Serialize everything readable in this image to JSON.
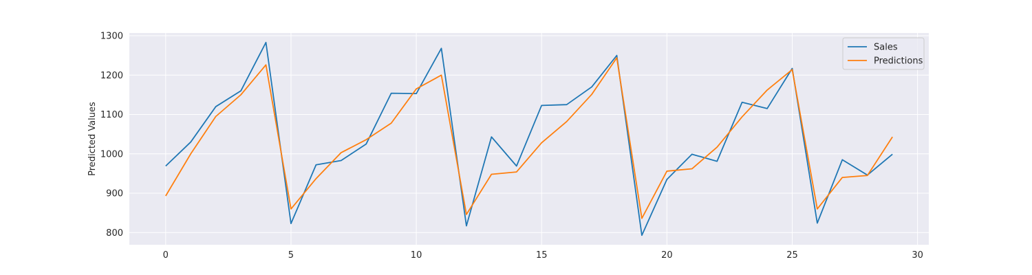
{
  "chart_data": {
    "type": "line",
    "title": "",
    "xlabel": "",
    "ylabel": "Predicted Values",
    "xlim": [
      -1.45,
      30.45
    ],
    "ylim": [
      769,
      1307
    ],
    "xticks": [
      0,
      5,
      10,
      15,
      20,
      25,
      30
    ],
    "yticks": [
      800,
      900,
      1000,
      1100,
      1200,
      1300
    ],
    "grid": true,
    "legend_position": "top-right",
    "x": [
      0,
      1,
      2,
      3,
      4,
      5,
      6,
      7,
      8,
      9,
      10,
      11,
      12,
      13,
      14,
      15,
      16,
      17,
      18,
      19,
      20,
      21,
      22,
      23,
      24,
      25,
      26,
      27,
      28,
      29
    ],
    "series": [
      {
        "name": "Sales",
        "color": "#1f77b4",
        "values": [
          969,
          1030,
          1120,
          1160,
          1283,
          823,
          972,
          983,
          1025,
          1154,
          1153,
          1268,
          817,
          1043,
          969,
          1123,
          1125,
          1170,
          1250,
          793,
          935,
          999,
          981,
          1131,
          1115,
          1217,
          824,
          985,
          946,
          999
        ]
      },
      {
        "name": "Predictions",
        "color": "#ff7f0e",
        "values": [
          893,
          1000,
          1095,
          1150,
          1226,
          860,
          937,
          1003,
          1036,
          1078,
          1165,
          1200,
          846,
          948,
          954,
          1028,
          1082,
          1151,
          1244,
          836,
          956,
          962,
          1017,
          1094,
          1162,
          1214,
          860,
          940,
          945,
          1043
        ]
      }
    ]
  }
}
